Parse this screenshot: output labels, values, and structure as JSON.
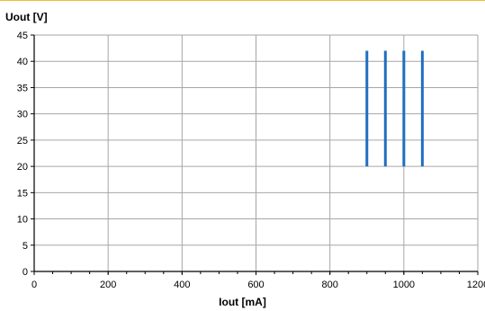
{
  "chart_data": {
    "type": "line",
    "title": "",
    "xlabel": "Iout [mA]",
    "ylabel": "Uout [V]",
    "xlim": [
      0,
      1200
    ],
    "ylim": [
      0,
      45
    ],
    "x_ticks": [
      "0",
      "200",
      "400",
      "600",
      "800",
      "1000",
      "1200"
    ],
    "y_ticks": [
      "0",
      "5",
      "10",
      "15",
      "20",
      "25",
      "30",
      "35",
      "40",
      "45"
    ],
    "x_minor_step": 50,
    "grid": true,
    "legend": "none",
    "series_color": "#1f6fc0",
    "grid_color": "#a6a6a6",
    "series": [
      {
        "x": [
          900,
          900
        ],
        "y": [
          20,
          42
        ]
      },
      {
        "x": [
          950,
          950
        ],
        "y": [
          20,
          42
        ]
      },
      {
        "x": [
          1000,
          1000
        ],
        "y": [
          20,
          42
        ]
      },
      {
        "x": [
          1050,
          1050
        ],
        "y": [
          20,
          42
        ]
      }
    ]
  }
}
